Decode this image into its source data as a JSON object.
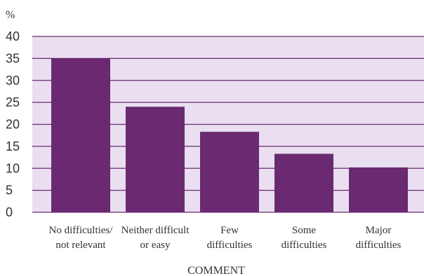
{
  "chart_data": {
    "type": "bar",
    "title": "",
    "xlabel": "COMMENT",
    "ylabel": "%",
    "ylim": [
      0,
      40
    ],
    "yticks": [
      0,
      5,
      10,
      15,
      20,
      25,
      30,
      35,
      40
    ],
    "grid": true,
    "legend": "none",
    "categories": [
      [
        "No difficulties/",
        "not relevant"
      ],
      [
        "Neither difficult",
        "or easy"
      ],
      [
        "Few",
        "difficulties"
      ],
      [
        "Some",
        "difficulties"
      ],
      [
        "Major",
        "difficulties"
      ]
    ],
    "values": [
      35,
      24,
      18.3,
      13.3,
      10.2
    ],
    "colors": {
      "bar": "#6b2972",
      "plot_background": "#e9dff0",
      "gridline": "#6b2972",
      "text": "#333333"
    }
  }
}
